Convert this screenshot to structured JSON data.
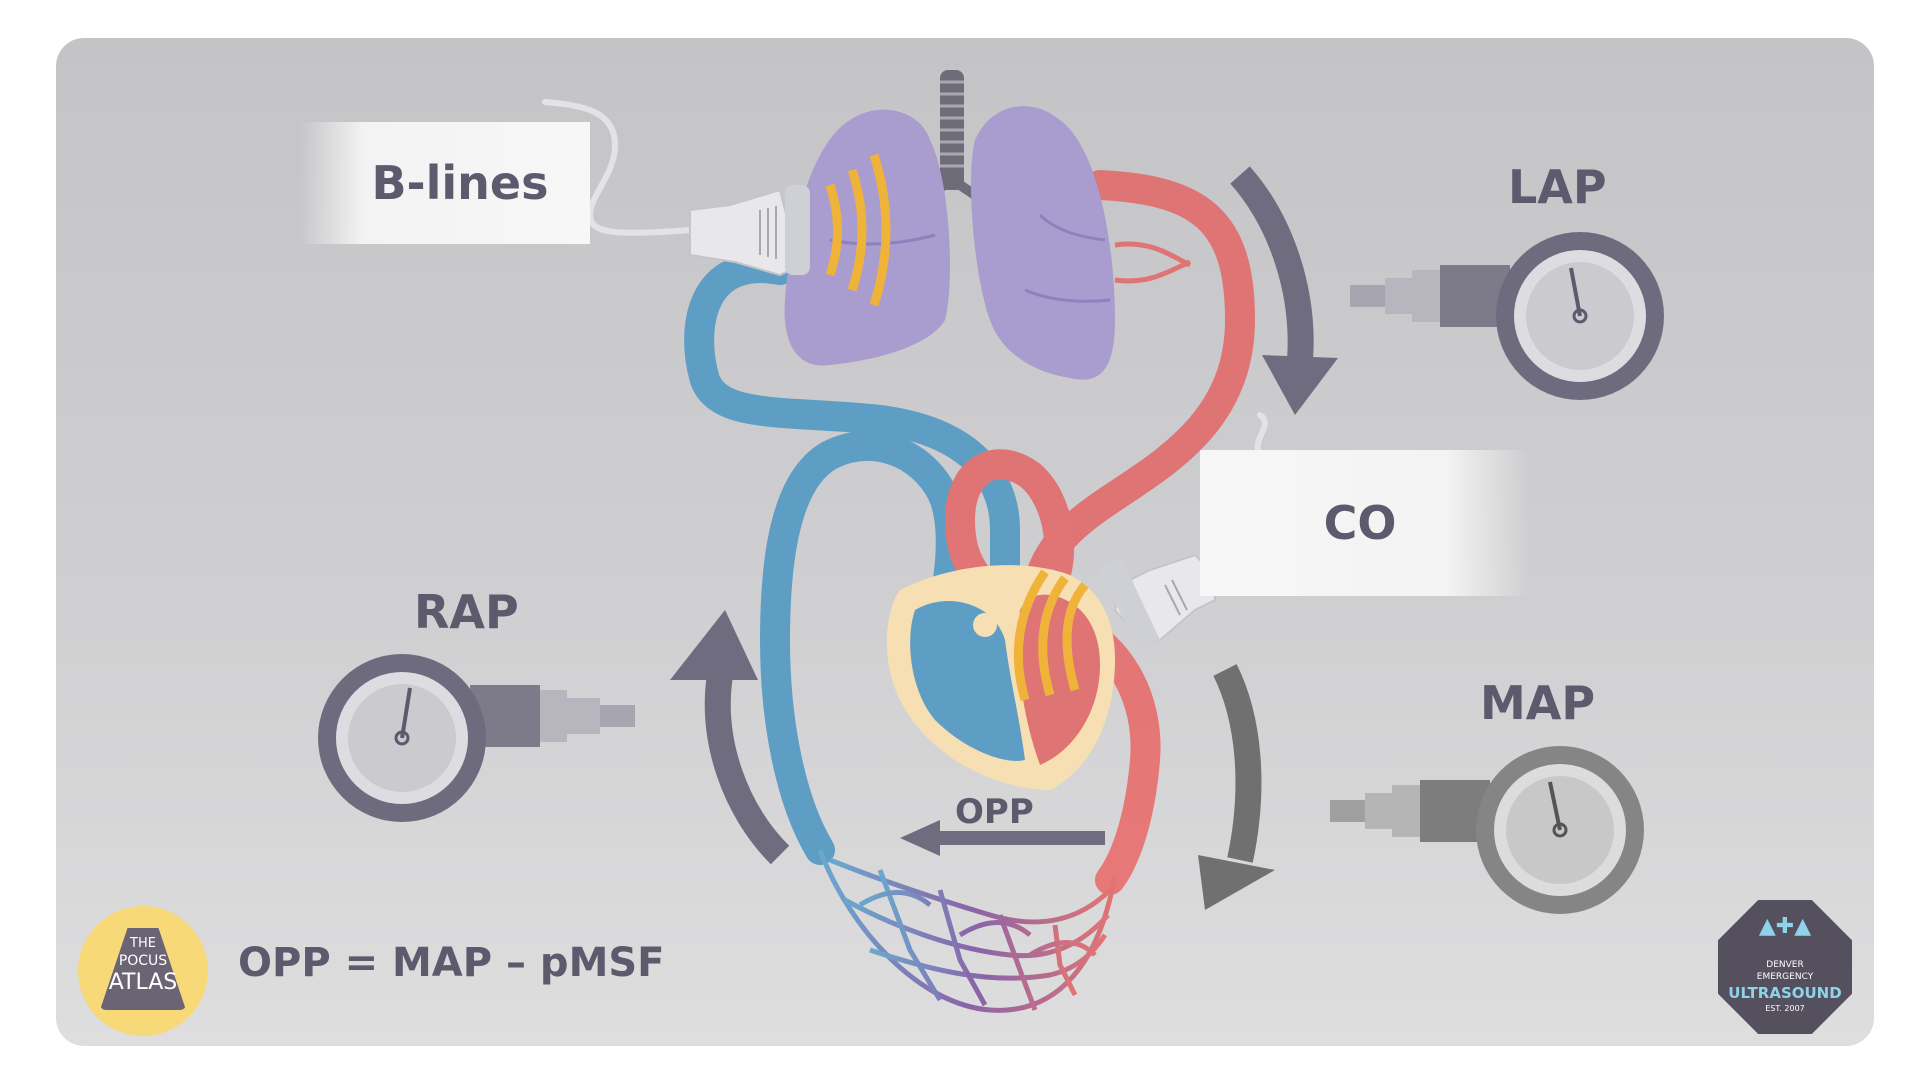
{
  "labels": {
    "b_lines": "B-lines",
    "co": "CO",
    "lap": "LAP",
    "rap": "RAP",
    "map": "MAP",
    "opp": "OPP",
    "formula": "OPP = MAP – pMSF"
  },
  "logos": {
    "pocus": {
      "line1": "THE",
      "line2": "POCUS",
      "line3": "ATLAS"
    },
    "deu": {
      "line1": "DENVER",
      "line2": "EMERGENCY",
      "line3": "ULTRASOUND",
      "line4": "EST. 2007"
    }
  },
  "icons": [
    "lungs-icon",
    "heart-icon",
    "ultrasound-probe-icon",
    "pressure-gauge-icon",
    "flow-arrow-icon",
    "capillary-bed-icon"
  ],
  "colors": {
    "background": "#c8c8ca",
    "venous": "#5e9ec4",
    "arterial": "#df7474",
    "lungs": "#a99ccf",
    "ultrasound_waves": "#f0b33a",
    "gauge": "#5e5a6e",
    "text": "#5e5a6e",
    "pocus_logo": "#f7d978"
  }
}
